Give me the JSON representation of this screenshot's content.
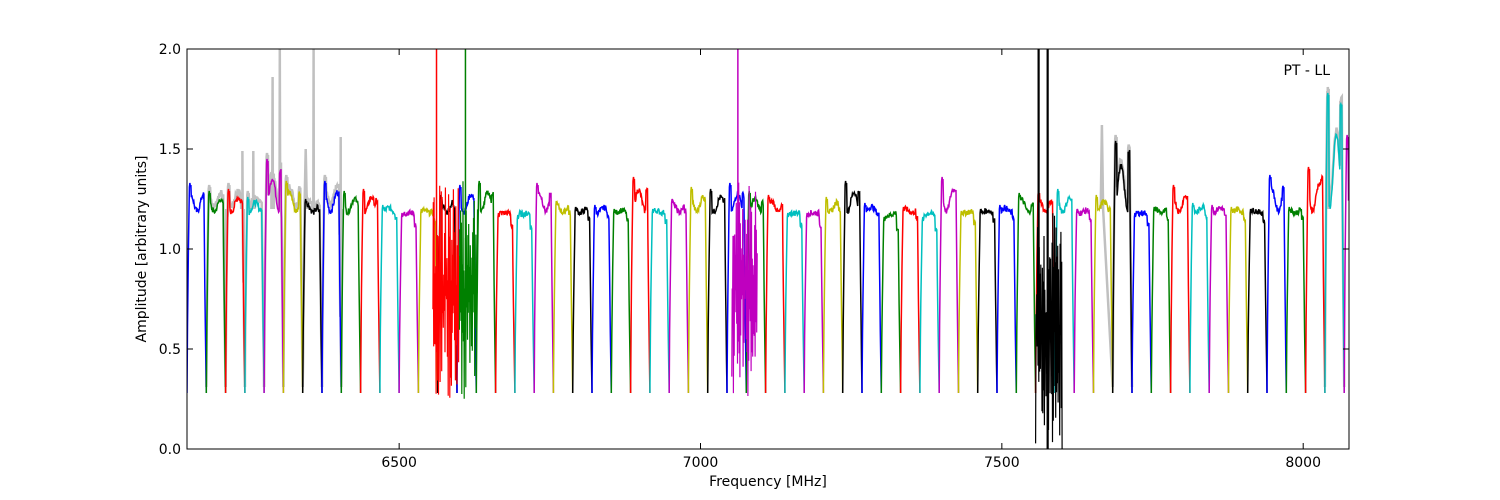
{
  "chart_data": {
    "type": "line",
    "title": "",
    "annotation": "PT - LL",
    "xlabel": "Frequency [MHz]",
    "ylabel": "Amplitude [arbitrary units]",
    "xlim": [
      6148,
      8076
    ],
    "ylim": [
      0.0,
      2.0
    ],
    "x_ticks": [
      6500,
      7000,
      7500,
      8000
    ],
    "y_ticks": [
      0.0,
      0.5,
      1.0,
      1.5,
      2.0
    ],
    "y_tick_labels": [
      "0.0",
      "0.5",
      "1.0",
      "1.5",
      "2.0"
    ],
    "grid": false,
    "legend": "none",
    "band_start": 6148,
    "band_width": 32,
    "band_colors": [
      "#0000ff",
      "#008000",
      "#ff0000",
      "#00bfbf",
      "#bf00bf",
      "#bfbf00",
      "#000000"
    ],
    "raw_color": "#c0c0c0",
    "band_peaks": [
      1.33,
      1.29,
      1.3,
      1.26,
      1.45,
      1.34,
      1.25,
      1.34,
      1.29,
      1.3,
      1.22,
      1.18,
      1.2,
      1.27,
      1.32,
      1.34,
      1.18,
      1.17,
      1.33,
      1.24,
      1.21,
      1.22,
      1.2,
      1.36,
      1.2,
      1.25,
      1.31,
      1.3,
      1.33,
      1.29,
      1.27,
      1.18,
      1.18,
      1.26,
      1.34,
      1.23,
      1.16,
      1.21,
      1.16,
      1.36,
      1.19,
      1.2,
      1.22,
      1.28,
      1.29,
      1.3,
      1.2,
      1.27,
      1.54,
      1.18,
      1.21,
      1.32,
      1.23,
      1.22,
      1.21,
      1.2,
      1.37,
      1.21,
      1.41,
      1.78,
      1.57
    ],
    "raw_overlay_peaks": [
      {
        "band": 1,
        "x": 6215,
        "y": 1.16
      },
      {
        "band": 2,
        "x": 6240,
        "y": 1.49
      },
      {
        "band": 3,
        "x": 6258,
        "y": 1.49
      },
      {
        "band": 4,
        "x": 6290,
        "y": 1.86
      },
      {
        "band": 4,
        "x": 6302,
        "y": 2.0
      },
      {
        "band": 5,
        "x": 6345,
        "y": 1.5
      },
      {
        "band": 6,
        "x": 6358,
        "y": 2.0
      },
      {
        "band": 7,
        "x": 6403,
        "y": 1.56
      },
      {
        "band": 48,
        "x": 7666,
        "y": 1.62
      },
      {
        "band": 59,
        "x": 8040,
        "y": 1.61
      }
    ],
    "rfi_lines": [
      {
        "x": 6562,
        "color": "#ff0000",
        "y_top": 2.0,
        "y_bottom": 0.72
      },
      {
        "x": 6610,
        "color": "#008000",
        "y_top": 2.0,
        "y_bottom": 0.9
      },
      {
        "x": 7062,
        "color": "#bf00bf",
        "y_top": 2.0,
        "y_bottom": 0.72
      },
      {
        "x": 7561,
        "color": "#000000",
        "y_top": 2.0,
        "y_bottom": 0.5
      },
      {
        "x": 7576,
        "color": "#000000",
        "y_top": 2.0,
        "y_bottom": 0.0
      }
    ],
    "noisy_regions": [
      {
        "x_start": 6556,
        "x_end": 6600,
        "color": "#ff0000",
        "y_low": 0.25,
        "y_high": 1.32
      },
      {
        "x_start": 6600,
        "x_end": 6630,
        "color": "#008000",
        "y_low": 0.25,
        "y_high": 1.34
      },
      {
        "x_start": 7052,
        "x_end": 7094,
        "color": "#bf00bf",
        "y_low": 0.25,
        "y_high": 1.34
      },
      {
        "x_start": 7556,
        "x_end": 7600,
        "color": "#000000",
        "y_low": 0.0,
        "y_high": 1.2
      }
    ]
  }
}
